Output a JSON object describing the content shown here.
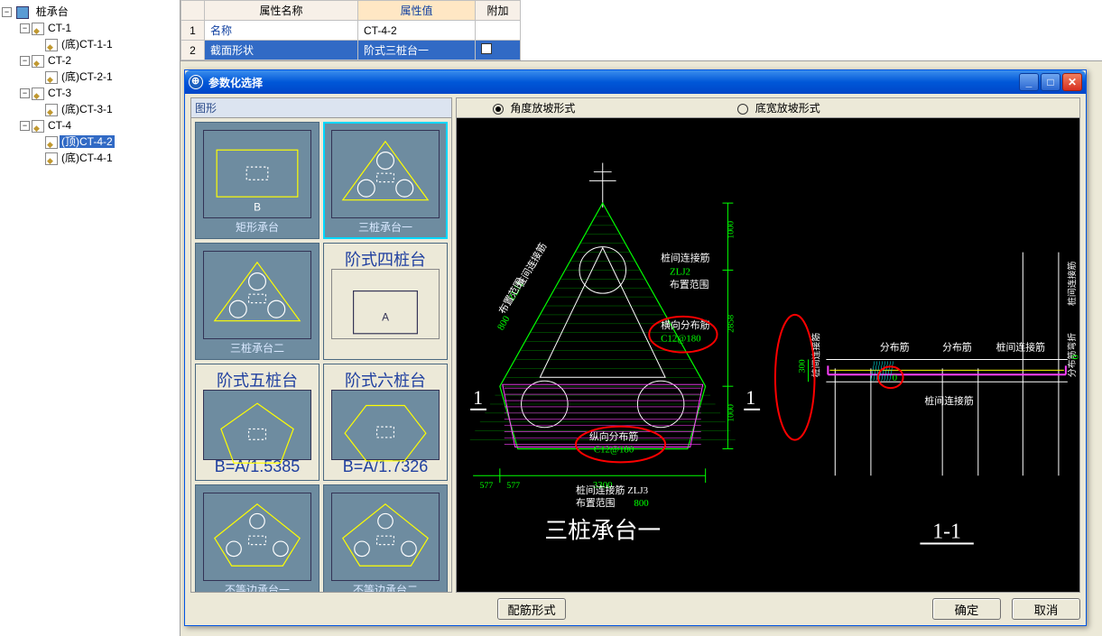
{
  "tree": {
    "root": "桩承台",
    "nodes": [
      {
        "label": "CT-1",
        "children": [
          {
            "label": "(底)CT-1-1"
          }
        ]
      },
      {
        "label": "CT-2",
        "children": [
          {
            "label": "(底)CT-2-1"
          }
        ]
      },
      {
        "label": "CT-3",
        "children": [
          {
            "label": "(底)CT-3-1"
          }
        ]
      },
      {
        "label": "CT-4",
        "children": [
          {
            "label": "(顶)CT-4-2",
            "selected": true
          },
          {
            "label": "(底)CT-4-1"
          }
        ]
      }
    ]
  },
  "prop": {
    "headers": {
      "name": "属性名称",
      "value": "属性值",
      "extra": "附加"
    },
    "rows": [
      {
        "n": "1",
        "name": "名称",
        "value": "CT-4-2"
      },
      {
        "n": "2",
        "name": "截面形状",
        "value": "阶式三桩台一",
        "selected": true,
        "checkbox": true
      }
    ]
  },
  "dialog": {
    "title": "参数化选择",
    "shape_header": "图形",
    "shapes": [
      {
        "caption": "矩形承台",
        "kind": "rect"
      },
      {
        "caption": "三桩承台一",
        "kind": "tri",
        "selected": true
      },
      {
        "caption": "三桩承台二",
        "kind": "tri2"
      },
      {
        "caption": "阶式四桩台",
        "kind": "label",
        "big": true
      },
      {
        "caption": "阶式五桩台",
        "kind": "label",
        "big": true,
        "sub": "B=A/1.5385",
        "shape": "pent"
      },
      {
        "caption": "阶式六桩台",
        "kind": "label",
        "big": true,
        "sub": "B=A/1.7326",
        "shape": "hex"
      },
      {
        "caption": "不等边承台一",
        "kind": "poly"
      },
      {
        "caption": "不等边承台二",
        "kind": "poly2"
      }
    ],
    "radios": {
      "opt1": "角度放坡形式",
      "opt2": "底宽放坡形式",
      "selected": 1
    },
    "buttons": {
      "rebar": "配筋形式",
      "ok": "确定",
      "cancel": "取消"
    },
    "cad": {
      "main_title": "三桩承台一",
      "section_title": "1-1",
      "dims": {
        "bottom_total": "3300",
        "bottom_seg": "577",
        "right_top": "1000",
        "right_mid": "2858",
        "right_bot": "1000",
        "zlj1_range": "800",
        "zlj2_range": "",
        "zlj3_range": "800",
        "sec_h": "300",
        "sec_zero": "0"
      },
      "labels": {
        "zlj1": "桩间连接筋",
        "zlj1b": "ZLJ1",
        "range": "布置范围",
        "zlj2": "桩间连接筋",
        "zlj2b": "ZLJ2",
        "zlj3": "桩间连接筋 ZLJ3",
        "hdist": "横向分布筋",
        "hdist_v": "C12@180",
        "vdist": "纵向分布筋",
        "vdist_v": "C12@180",
        "sec_dist": "分布筋",
        "sec_conn": "桩间连接筋",
        "sec_conn2": "桩间连接筋",
        "sec_right1": "桩间连接筋",
        "sec_right2": "分布筋弯折"
      },
      "colors": {
        "outline": "#00ff00",
        "hatch": "#00a000",
        "magenta": "#ff40ff",
        "cyan": "#00ffff",
        "white": "#ffffff",
        "yellow": "#ffff00",
        "dim": "#00ff00",
        "annot": "#ff0000"
      }
    }
  }
}
